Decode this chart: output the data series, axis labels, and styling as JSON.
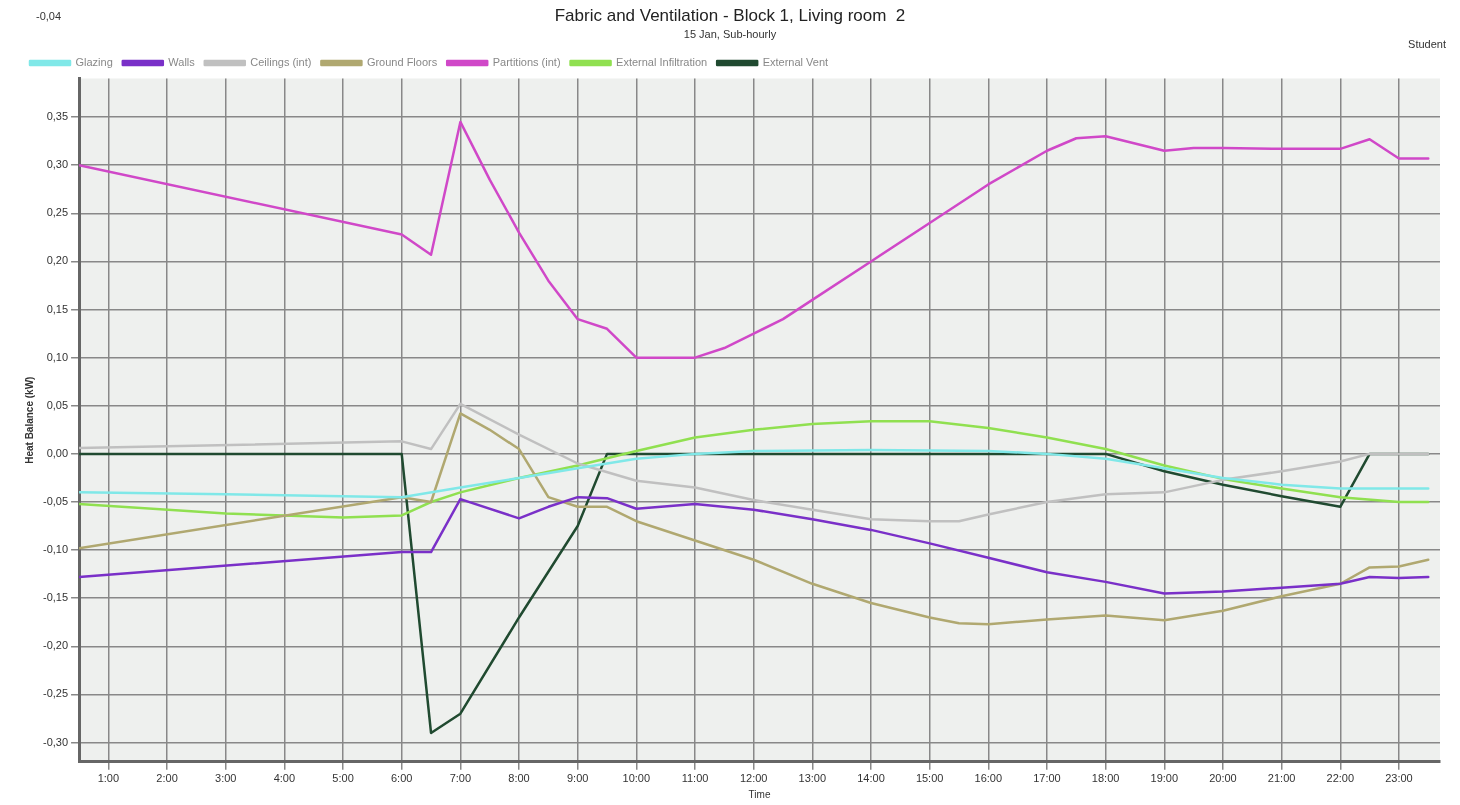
{
  "chart_data": {
    "type": "line",
    "title": "Fabric and Ventilation - Block 1, Living room  2",
    "subtitle": "15 Jan, Sub-hourly",
    "xlabel": "Time",
    "ylabel": "Heat Balance (kW)",
    "annotations": [
      "-0,04",
      "Student"
    ],
    "xlim": [
      0.5,
      23.7
    ],
    "xticks": [
      {
        "value": 1,
        "label": "1:00"
      },
      {
        "value": 2,
        "label": "2:00"
      },
      {
        "value": 3,
        "label": "3:00"
      },
      {
        "value": 4,
        "label": "4:00"
      },
      {
        "value": 5,
        "label": "5:00"
      },
      {
        "value": 6,
        "label": "6:00"
      },
      {
        "value": 7,
        "label": "7:00"
      },
      {
        "value": 8,
        "label": "8:00"
      },
      {
        "value": 9,
        "label": "9:00"
      },
      {
        "value": 10,
        "label": "10:00"
      },
      {
        "value": 11,
        "label": "11:00"
      },
      {
        "value": 12,
        "label": "12:00"
      },
      {
        "value": 13,
        "label": "13:00"
      },
      {
        "value": 14,
        "label": "14:00"
      },
      {
        "value": 15,
        "label": "15:00"
      },
      {
        "value": 16,
        "label": "16:00"
      },
      {
        "value": 17,
        "label": "17:00"
      },
      {
        "value": 18,
        "label": "18:00"
      },
      {
        "value": 19,
        "label": "19:00"
      },
      {
        "value": 20,
        "label": "20:00"
      },
      {
        "value": 21,
        "label": "21:00"
      },
      {
        "value": 22,
        "label": "22:00"
      },
      {
        "value": 23,
        "label": "23:00"
      }
    ],
    "ylim": [
      -0.32,
      0.39
    ],
    "yticks": [
      {
        "value": -0.3,
        "label": "-0,30"
      },
      {
        "value": -0.25,
        "label": "-0,25"
      },
      {
        "value": -0.2,
        "label": "-0,20"
      },
      {
        "value": -0.15,
        "label": "-0,15"
      },
      {
        "value": -0.1,
        "label": "-0,10"
      },
      {
        "value": -0.05,
        "label": "-0,05"
      },
      {
        "value": 0,
        "label": "0,00"
      },
      {
        "value": 0.05,
        "label": "0,05"
      },
      {
        "value": 0.1,
        "label": "0,10"
      },
      {
        "value": 0.15,
        "label": "0,15"
      },
      {
        "value": 0.2,
        "label": "0,20"
      },
      {
        "value": 0.25,
        "label": "0,25"
      },
      {
        "value": 0.3,
        "label": "0,30"
      },
      {
        "value": 0.35,
        "label": "0,35"
      }
    ],
    "grid": true,
    "legend": "top",
    "marker": "none",
    "line_style": "solid",
    "series": [
      {
        "name": "Glazing",
        "color": "#80e8e8",
        "x": [
          0.5,
          3,
          6,
          7,
          8,
          9,
          10,
          11,
          12,
          14,
          16,
          17,
          18,
          19,
          20,
          21,
          22,
          23,
          23.5
        ],
        "values": [
          -0.04,
          -0.042,
          -0.045,
          -0.035,
          -0.025,
          -0.015,
          -0.005,
          0,
          0.003,
          0.004,
          0.003,
          0,
          -0.005,
          -0.015,
          -0.025,
          -0.032,
          -0.036,
          -0.036,
          -0.036
        ]
      },
      {
        "name": "Walls",
        "color": "#7a30c8",
        "x": [
          0.5,
          6,
          6.5,
          7,
          8,
          8.5,
          9,
          9.5,
          10,
          11,
          12,
          13,
          14,
          15,
          16,
          17,
          18,
          19,
          20,
          21,
          22,
          22.5,
          23,
          23.5
        ],
        "values": [
          -0.128,
          -0.102,
          -0.102,
          -0.047,
          -0.067,
          -0.055,
          -0.045,
          -0.046,
          -0.057,
          -0.052,
          -0.058,
          -0.068,
          -0.079,
          -0.093,
          -0.108,
          -0.123,
          -0.133,
          -0.145,
          -0.143,
          -0.139,
          -0.135,
          -0.128,
          -0.129,
          -0.128
        ]
      },
      {
        "name": "Ceilings (int)",
        "color": "#c0c0c0",
        "x": [
          0.5,
          6,
          6.5,
          7,
          8,
          9,
          10,
          11,
          12,
          13,
          14,
          15,
          15.5,
          16,
          17,
          18,
          19,
          20,
          21,
          22,
          22.5,
          23,
          23.5
        ],
        "values": [
          0.006,
          0.013,
          0.005,
          0.052,
          0.02,
          -0.01,
          -0.028,
          -0.035,
          -0.048,
          -0.058,
          -0.068,
          -0.07,
          -0.07,
          -0.063,
          -0.05,
          -0.042,
          -0.04,
          -0.027,
          -0.018,
          -0.008,
          0,
          0,
          0
        ]
      },
      {
        "name": "Ground Floors",
        "color": "#b0a870",
        "x": [
          0.5,
          6,
          6.5,
          7,
          7.5,
          8,
          8.5,
          9,
          9.5,
          10,
          11,
          12,
          13,
          14,
          15,
          15.5,
          16,
          17,
          18,
          19,
          20,
          21,
          22,
          22.5,
          23,
          23.5
        ],
        "values": [
          -0.098,
          -0.045,
          -0.05,
          0.042,
          0.025,
          0.005,
          -0.045,
          -0.055,
          -0.055,
          -0.07,
          -0.09,
          -0.11,
          -0.135,
          -0.155,
          -0.17,
          -0.176,
          -0.177,
          -0.172,
          -0.168,
          -0.173,
          -0.163,
          -0.148,
          -0.135,
          -0.118,
          -0.117,
          -0.11
        ]
      },
      {
        "name": "Partitions (int)",
        "color": "#d048c8",
        "x": [
          0.5,
          6,
          6.5,
          7,
          7.5,
          8,
          8.5,
          9,
          9.5,
          10,
          11,
          11.5,
          12,
          12.5,
          13,
          14,
          15,
          16,
          17,
          17.5,
          18,
          19,
          19.5,
          20,
          21,
          22,
          22.5,
          23,
          23.5
        ],
        "values": [
          0.3,
          0.228,
          0.207,
          0.345,
          0.285,
          0.23,
          0.18,
          0.14,
          0.13,
          0.1,
          0.1,
          0.11,
          0.125,
          0.14,
          0.16,
          0.2,
          0.24,
          0.28,
          0.315,
          0.328,
          0.33,
          0.315,
          0.318,
          0.318,
          0.317,
          0.317,
          0.327,
          0.307,
          0.307
        ]
      },
      {
        "name": "External Infiltration",
        "color": "#90e050",
        "x": [
          0.5,
          3,
          5,
          6,
          6.5,
          7,
          8,
          9,
          10,
          11,
          12,
          13,
          14,
          15,
          16,
          17,
          18,
          19,
          20,
          21,
          22,
          23,
          23.5
        ],
        "values": [
          -0.052,
          -0.062,
          -0.066,
          -0.064,
          -0.05,
          -0.04,
          -0.025,
          -0.012,
          0.003,
          0.017,
          0.025,
          0.031,
          0.034,
          0.034,
          0.027,
          0.017,
          0.005,
          -0.012,
          -0.026,
          -0.036,
          -0.045,
          -0.05,
          -0.05
        ]
      },
      {
        "name": "External Vent",
        "color": "#204a30",
        "x": [
          0.5,
          6,
          6.5,
          7,
          8,
          9,
          9.5,
          18,
          19,
          20,
          21,
          22,
          22.5,
          23.5
        ],
        "values": [
          0,
          0,
          -0.29,
          -0.27,
          -0.17,
          -0.075,
          0,
          0,
          -0.018,
          -0.032,
          -0.044,
          -0.055,
          0,
          0
        ]
      }
    ]
  }
}
